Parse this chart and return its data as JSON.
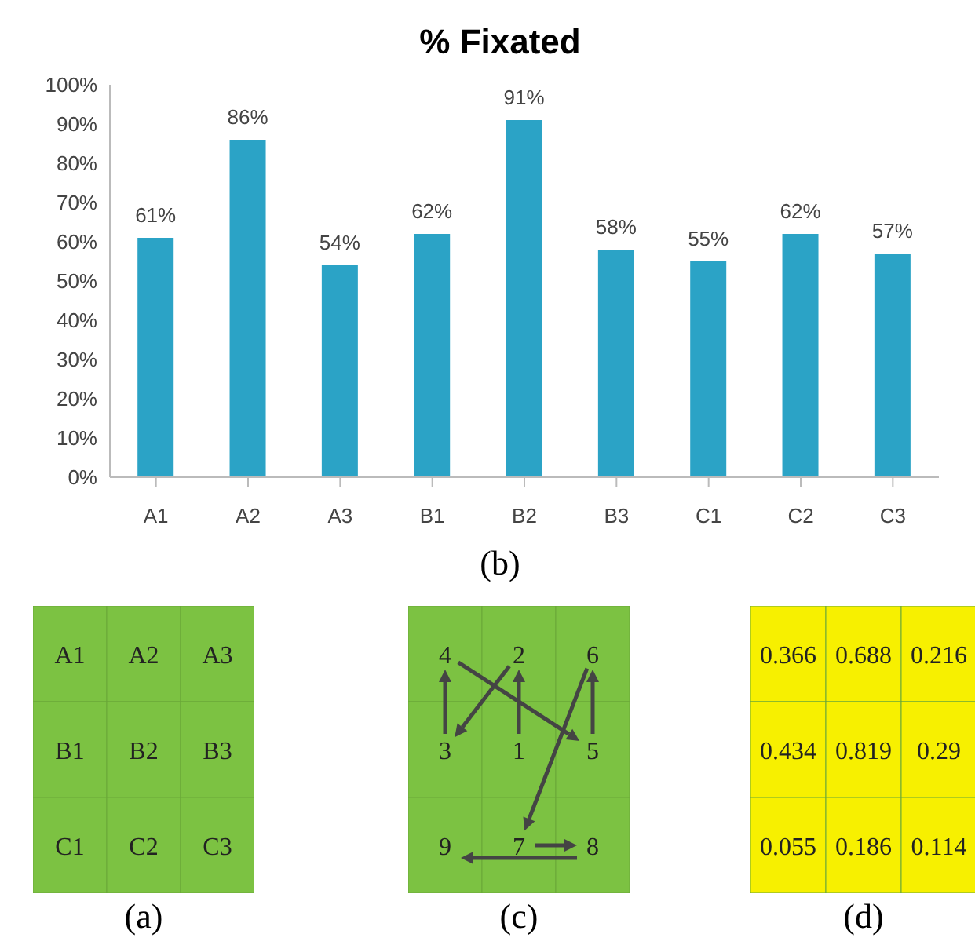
{
  "chart_data": [
    {
      "type": "bar",
      "title": "% Fixated",
      "categories": [
        "A1",
        "A2",
        "A3",
        "B1",
        "B2",
        "B3",
        "C1",
        "C2",
        "C3"
      ],
      "values": [
        61,
        86,
        54,
        62,
        91,
        58,
        55,
        62,
        57
      ],
      "value_labels": [
        "61%",
        "86%",
        "54%",
        "62%",
        "91%",
        "58%",
        "55%",
        "62%",
        "57%"
      ],
      "color": "#2ba3c6",
      "ylim": [
        0,
        100
      ],
      "yticks": [
        {
          "value": 0,
          "label": "0%"
        },
        {
          "value": 10,
          "label": "10%"
        },
        {
          "value": 20,
          "label": "20%"
        },
        {
          "value": 30,
          "label": "30%"
        },
        {
          "value": 40,
          "label": "40%"
        },
        {
          "value": 50,
          "label": "50%"
        },
        {
          "value": 60,
          "label": "60%"
        },
        {
          "value": 70,
          "label": "70%"
        },
        {
          "value": 80,
          "label": "80%"
        },
        {
          "value": 90,
          "label": "90%"
        },
        {
          "value": 100,
          "label": "100%"
        }
      ],
      "grid": false,
      "legend": false,
      "annotations": [
        "(b)"
      ]
    },
    {
      "type": "other",
      "cell_labels": [
        [
          "A1",
          "A2",
          "A3"
        ],
        [
          "B1",
          "B2",
          "B3"
        ],
        [
          "C1",
          "C2",
          "C3"
        ]
      ],
      "color": "#7cc242",
      "annotations": [
        "(a)"
      ]
    },
    {
      "type": "other",
      "cell_labels": [
        [
          "4",
          "2",
          "6"
        ],
        [
          "3",
          "1",
          "5"
        ],
        [
          "9",
          "7",
          "8"
        ]
      ],
      "color": "#7cc242",
      "annotations": [
        "(c)"
      ]
    },
    {
      "type": "other",
      "cell_labels": [
        [
          "0.366",
          "0.688",
          "0.216"
        ],
        [
          "0.434",
          "0.819",
          "0.29"
        ],
        [
          "0.055",
          "0.186",
          "0.114"
        ]
      ],
      "color": "#f7f000",
      "annotations": [
        "(d)"
      ]
    }
  ]
}
